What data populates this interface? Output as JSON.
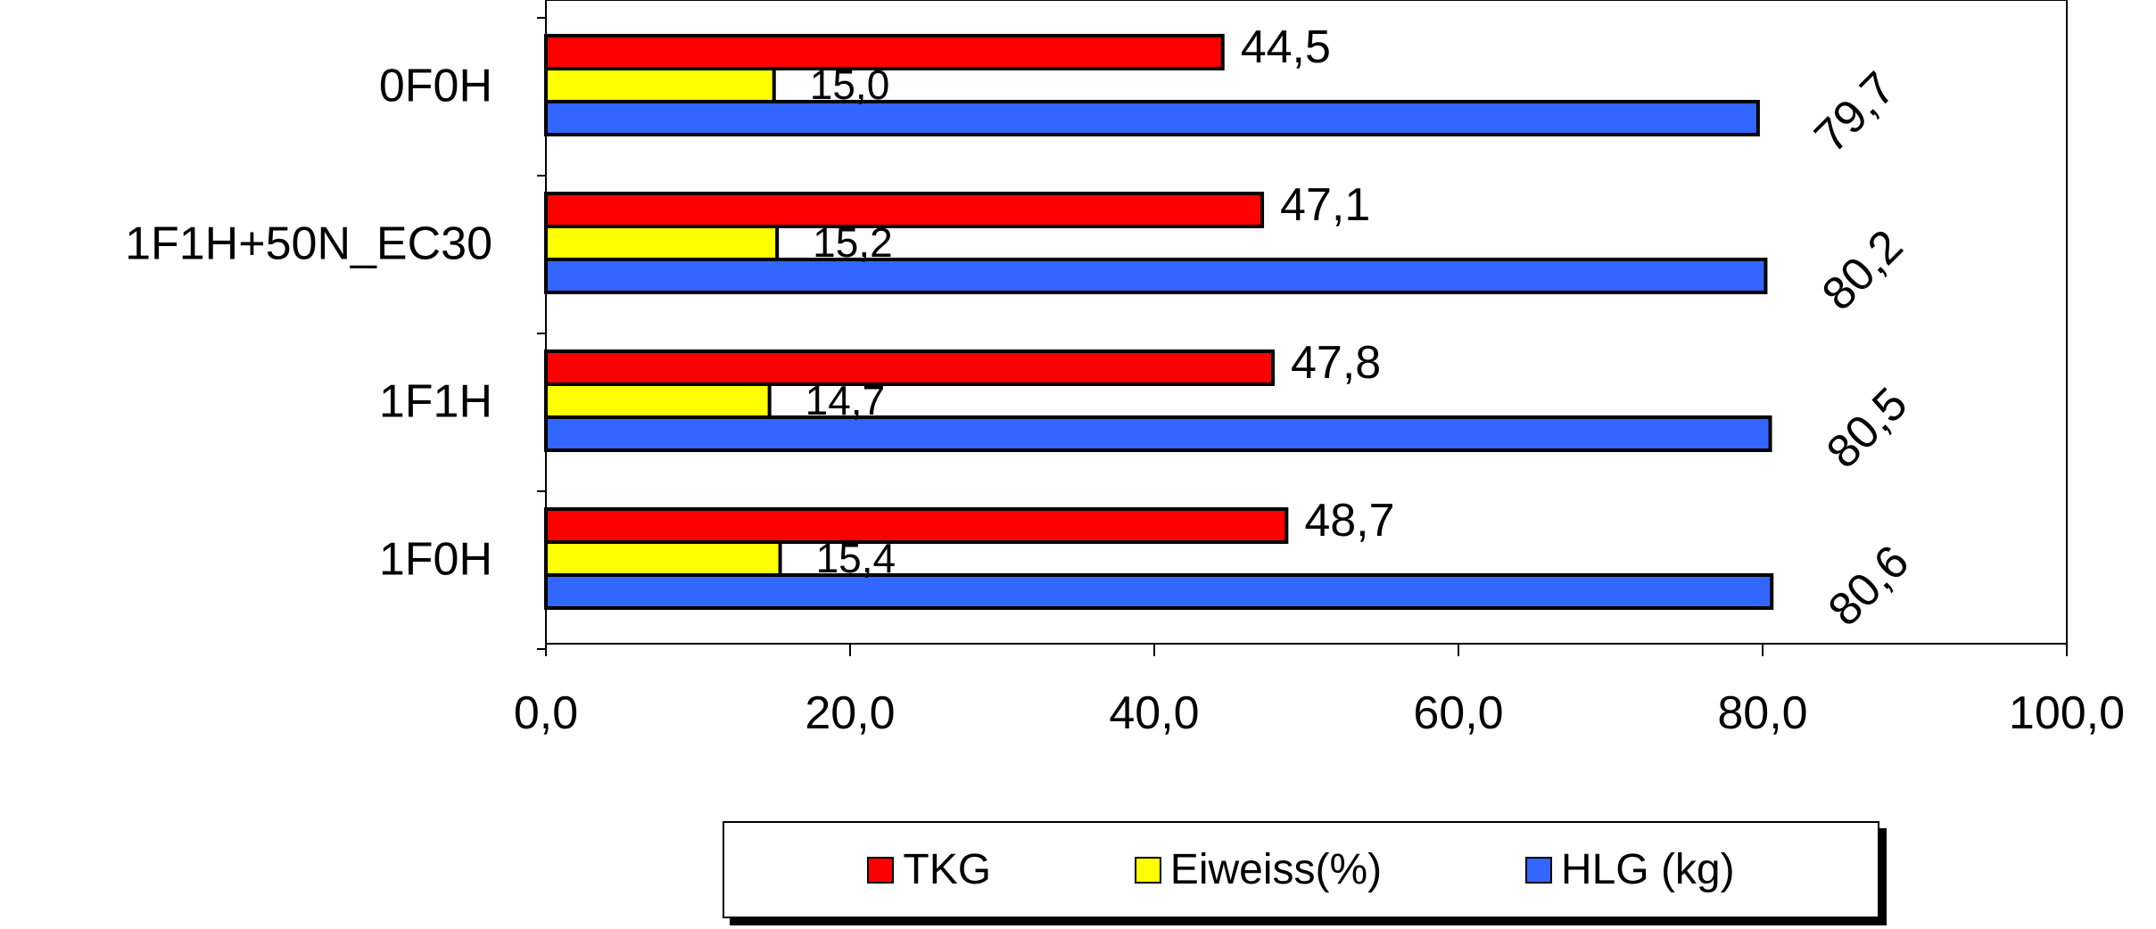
{
  "chart_data": {
    "type": "bar",
    "orientation": "horizontal",
    "categories": [
      "0F0H",
      "1F1H+50N_EC30",
      "1F1H",
      "1F0H"
    ],
    "series": [
      {
        "name": "TKG",
        "color": "#ff0000",
        "values": [
          44.5,
          47.1,
          47.8,
          48.7
        ],
        "labels": [
          "44,5",
          "47,1",
          "47,8",
          "48,7"
        ]
      },
      {
        "name": "Eiweiss(%)",
        "color": "#ffff00",
        "values": [
          15.0,
          15.2,
          14.7,
          15.4
        ],
        "labels": [
          "15,0",
          "15,2",
          "14,7",
          "15,4"
        ]
      },
      {
        "name": "HLG (kg)",
        "color": "#3366ff",
        "values": [
          79.7,
          80.2,
          80.5,
          80.6
        ],
        "labels": [
          "79,7",
          "80,2",
          "80,5",
          "80,6"
        ]
      }
    ],
    "xlim": [
      0,
      100
    ],
    "x_ticks": [
      0,
      20,
      40,
      60,
      80,
      100
    ],
    "x_tick_labels": [
      "0,0",
      "20,0",
      "40,0",
      "60,0",
      "80,0",
      "100,0"
    ],
    "grid": false,
    "legend_position": "bottom"
  }
}
